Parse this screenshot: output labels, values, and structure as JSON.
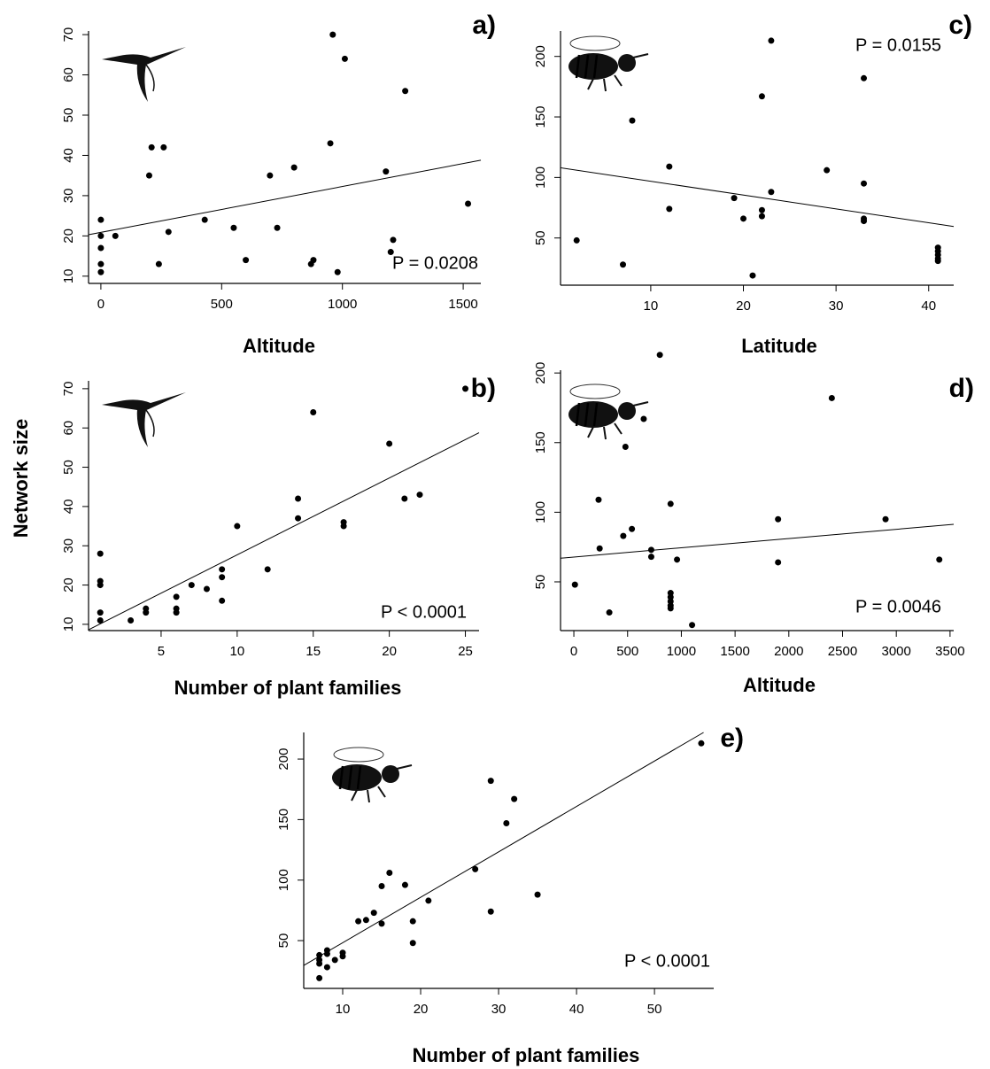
{
  "chart_data": [
    {
      "type": "scatter",
      "panel": "a)",
      "xlabel": "Altitude",
      "annotation": "P = 0.0208",
      "color": "#000000",
      "x": [
        0,
        0,
        0,
        0,
        0,
        60,
        200,
        210,
        260,
        240,
        280,
        430,
        550,
        600,
        700,
        730,
        800,
        870,
        880,
        950,
        960,
        980,
        1010,
        1180,
        1200,
        1210,
        1260,
        1520
      ],
      "values": [
        11,
        13,
        17,
        20,
        24,
        20,
        35,
        42,
        42,
        13,
        21,
        24,
        22,
        14,
        35,
        22,
        37,
        13,
        14,
        43,
        70,
        11,
        64,
        36,
        16,
        19,
        56,
        28
      ],
      "xlim": [
        -51,
        1573
      ],
      "ylim": [
        8.2,
        70.9
      ],
      "xticks": [
        0,
        500,
        1000,
        1500
      ],
      "yticks": [
        10,
        20,
        30,
        40,
        50,
        60,
        70
      ],
      "trend": {
        "x": [
          -51,
          1573
        ],
        "y": [
          20.3,
          38.8
        ]
      }
    },
    {
      "type": "scatter",
      "panel": "b)",
      "xlabel": "Number of plant families",
      "ylabel": "Network size",
      "annotation": "P < 0.0001",
      "color": "#000000",
      "x": [
        1,
        1,
        1,
        1,
        1,
        3,
        4,
        4,
        6,
        6,
        6,
        7,
        8,
        9,
        9,
        9,
        10,
        12,
        14,
        14,
        15,
        17,
        17,
        20,
        21,
        22,
        25
      ],
      "values": [
        11,
        13,
        20,
        21,
        28,
        11,
        13,
        14,
        13,
        14,
        17,
        20,
        19,
        16,
        22,
        24,
        35,
        24,
        37,
        42,
        64,
        35,
        36,
        56,
        42,
        43,
        70
      ],
      "xlim": [
        0.23,
        25.9
      ],
      "ylim": [
        8.4,
        72
      ],
      "xticks": [
        5,
        10,
        15,
        20,
        25
      ],
      "yticks": [
        10,
        20,
        30,
        40,
        50,
        60,
        70
      ],
      "trend": {
        "x": [
          0.23,
          25.9
        ],
        "y": [
          8.6,
          58.8
        ]
      }
    },
    {
      "type": "scatter",
      "panel": "c)",
      "xlabel": "Latitude",
      "annotation": "P = 0.0155",
      "color": "#000000",
      "x": [
        2,
        7,
        8,
        12,
        12,
        19,
        20,
        21,
        22,
        22,
        22,
        23,
        23,
        29,
        33,
        33,
        33,
        33,
        41,
        41,
        41,
        41,
        41
      ],
      "values": [
        48,
        28,
        147,
        109,
        74,
        83,
        66,
        19,
        167,
        73,
        68,
        213,
        88,
        106,
        182,
        95,
        66,
        64,
        42,
        39,
        36,
        33,
        31
      ],
      "xlim": [
        0.26,
        42.7
      ],
      "ylim": [
        11,
        221
      ],
      "xticks": [
        10,
        20,
        30,
        40
      ],
      "yticks": [
        50,
        100,
        150,
        200
      ],
      "trend": {
        "x": [
          0.26,
          42.7
        ],
        "y": [
          108,
          59.5
        ]
      }
    },
    {
      "type": "scatter",
      "panel": "d)",
      "xlabel": "Altitude",
      "annotation": "P = 0.0046",
      "color": "#000000",
      "x": [
        10,
        230,
        240,
        330,
        460,
        480,
        540,
        650,
        720,
        720,
        800,
        900,
        900,
        900,
        900,
        900,
        900,
        960,
        1100,
        1900,
        1900,
        2400,
        2900,
        3400
      ],
      "values": [
        48,
        109,
        74,
        28,
        83,
        147,
        88,
        167,
        73,
        68,
        213,
        106,
        42,
        39,
        36,
        33,
        31,
        66,
        19,
        95,
        64,
        182,
        95,
        66
      ],
      "xlim": [
        -124,
        3534
      ],
      "ylim": [
        15,
        202
      ],
      "xticks": [
        0,
        500,
        1000,
        1500,
        2000,
        2500,
        3000,
        3500
      ],
      "yticks": [
        50,
        100,
        150,
        200
      ],
      "trend": {
        "x": [
          -124,
          3534
        ],
        "y": [
          67,
          91.3
        ]
      }
    },
    {
      "type": "scatter",
      "panel": "e)",
      "xlabel": "Number of plant families",
      "annotation": "P < 0.0001",
      "color": "#000000",
      "x": [
        7,
        7,
        7,
        7,
        8,
        8,
        8,
        9,
        10,
        10,
        12,
        13,
        14,
        15,
        15,
        16,
        18,
        19,
        19,
        21,
        27,
        29,
        29,
        31,
        32,
        35,
        56
      ],
      "values": [
        19,
        31,
        34,
        38,
        28,
        39,
        42,
        34,
        37,
        40,
        66,
        67,
        73,
        95,
        64,
        106,
        96,
        48,
        66,
        83,
        109,
        182,
        74,
        147,
        167,
        88,
        213
      ],
      "xlim": [
        5,
        57.6
      ],
      "ylim": [
        10.5,
        222
      ],
      "xticks": [
        10,
        20,
        30,
        40,
        50
      ],
      "yticks": [
        50,
        100,
        150,
        200
      ],
      "trend": {
        "x": [
          5,
          56.3
        ],
        "y": [
          29.5,
          222
        ]
      }
    }
  ]
}
